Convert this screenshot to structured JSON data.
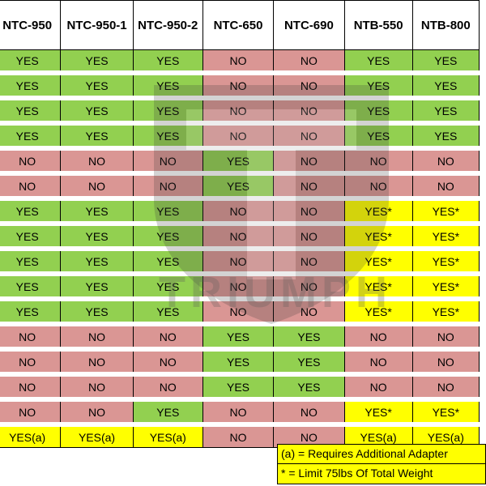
{
  "columns": [
    "NTC-950",
    "NTC-950-1",
    "NTC-950-2",
    "NTC-650",
    "NTC-690",
    "NTB-550",
    "NTB-800"
  ],
  "rows": [
    [
      "YES",
      "YES",
      "YES",
      "NO",
      "NO",
      "YES",
      "YES"
    ],
    [
      "YES",
      "YES",
      "YES",
      "NO",
      "NO",
      "YES",
      "YES"
    ],
    [
      "YES",
      "YES",
      "YES",
      "NO",
      "NO",
      "YES",
      "YES"
    ],
    [
      "YES",
      "YES",
      "YES",
      "NO",
      "NO",
      "YES",
      "YES"
    ],
    [
      "NO",
      "NO",
      "NO",
      "YES",
      "NO",
      "NO",
      "NO"
    ],
    [
      "NO",
      "NO",
      "NO",
      "YES",
      "NO",
      "NO",
      "NO"
    ],
    [
      "YES",
      "YES",
      "YES",
      "NO",
      "NO",
      "YES*",
      "YES*"
    ],
    [
      "YES",
      "YES",
      "YES",
      "NO",
      "NO",
      "YES*",
      "YES*"
    ],
    [
      "YES",
      "YES",
      "YES",
      "NO",
      "NO",
      "YES*",
      "YES*"
    ],
    [
      "YES",
      "YES",
      "YES",
      "NO",
      "NO",
      "YES*",
      "YES*"
    ],
    [
      "YES",
      "YES",
      "YES",
      "NO",
      "NO",
      "YES*",
      "YES*"
    ],
    [
      "NO",
      "NO",
      "NO",
      "YES",
      "YES",
      "NO",
      "NO"
    ],
    [
      "NO",
      "NO",
      "NO",
      "YES",
      "YES",
      "NO",
      "NO"
    ],
    [
      "NO",
      "NO",
      "NO",
      "YES",
      "YES",
      "NO",
      "NO"
    ],
    [
      "NO",
      "NO",
      "YES",
      "NO",
      "NO",
      "YES*",
      "YES*"
    ],
    [
      "YES(a)",
      "YES(a)",
      "YES(a)",
      "NO",
      "NO",
      "YES(a)",
      "YES(a)"
    ]
  ],
  "legend": {
    "line1": "(a) = Requires Additional Adapter",
    "line2": "* = Limit 75lbs Of Total Weight"
  },
  "watermark": {
    "text": "TRIUMPH"
  },
  "colors": {
    "yes": "#92d050",
    "no": "#da9694",
    "conditional": "#ffff00"
  }
}
